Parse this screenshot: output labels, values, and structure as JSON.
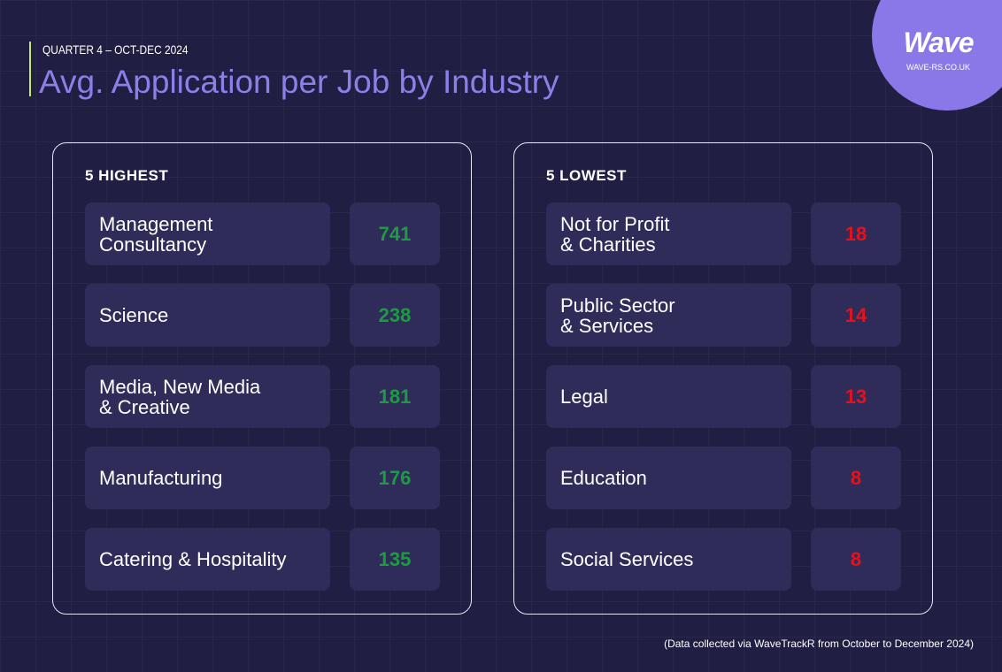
{
  "header": {
    "logo": "Wave",
    "site": "WAVE-RS.CO.UK",
    "period": "QUARTER 4 – OCT-DEC 2024",
    "title": "Avg. Application per Job by Industry"
  },
  "panels": [
    {
      "heading": "5 HIGHEST",
      "color": "#1f9a44",
      "rows": [
        {
          "label": "Management\nConsultancy",
          "value": 741
        },
        {
          "label": "Science",
          "value": 238
        },
        {
          "label": "Media, New Media\n& Creative",
          "value": 181
        },
        {
          "label": "Manufacturing",
          "value": 176
        },
        {
          "label": "Catering & Hospitality",
          "value": 135
        }
      ]
    },
    {
      "heading": "5 LOWEST",
      "color": "#e3131e",
      "rows": [
        {
          "label": "Not for Profit\n& Charities",
          "value": 18
        },
        {
          "label": "Public Sector\n& Services",
          "value": 14
        },
        {
          "label": "Legal",
          "value": 13
        },
        {
          "label": "Education",
          "value": 8
        },
        {
          "label": "Social Services",
          "value": 8
        }
      ]
    }
  ],
  "footnote": "(Data collected via WaveTrackR from October to December 2024)"
}
